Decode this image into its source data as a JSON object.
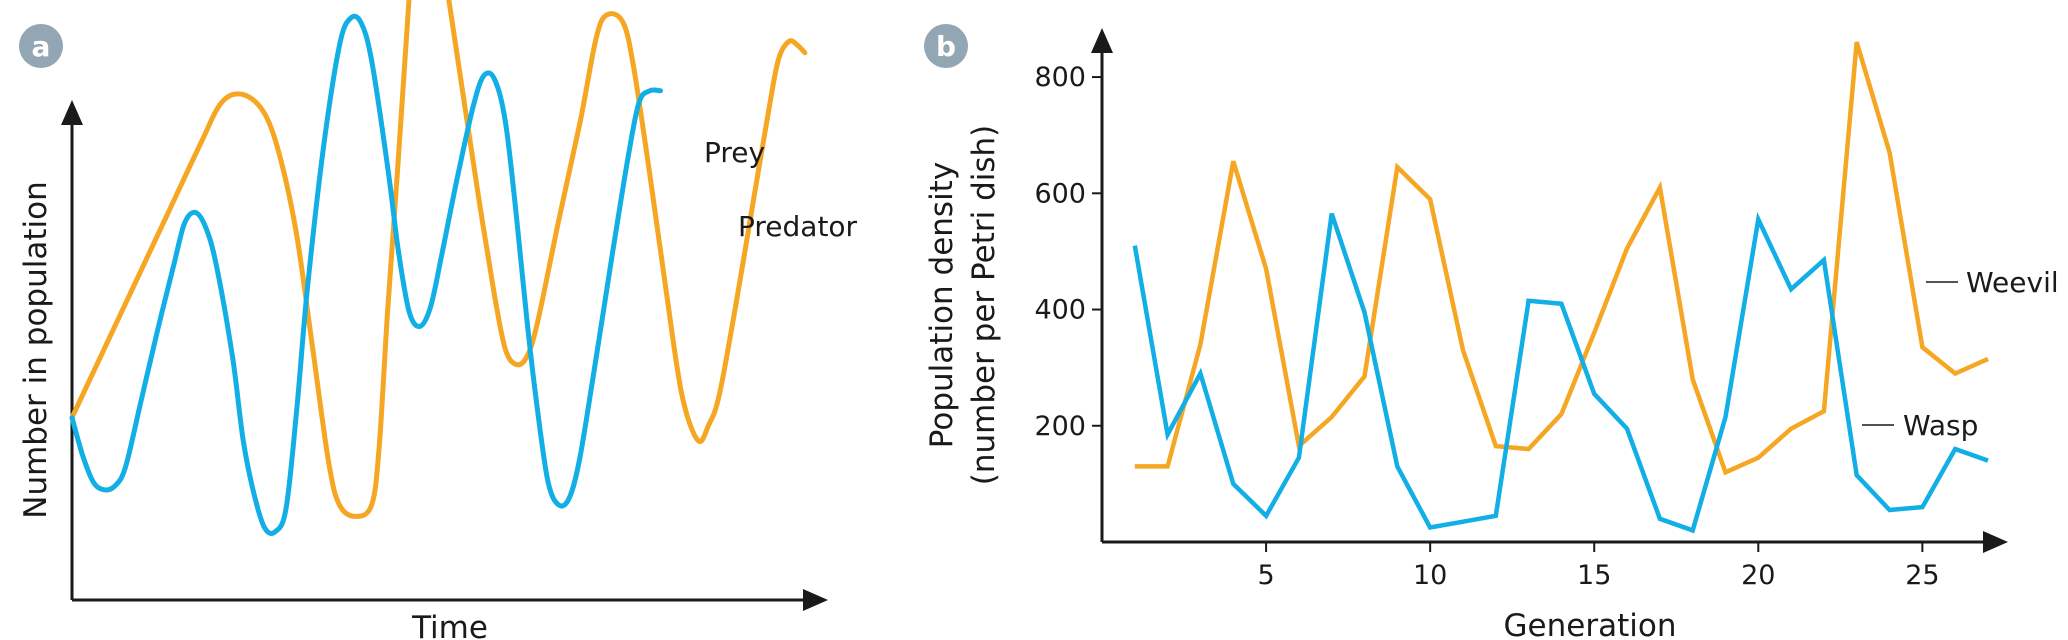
{
  "colors": {
    "prey": "#f5a623",
    "predator": "#12aee6",
    "axis": "#1a1a1a",
    "badge": "#93a6b4"
  },
  "chart_data": [
    {
      "panel": "a",
      "type": "line",
      "xlabel": "Time",
      "ylabel": "Number in population",
      "series": [
        {
          "name": "Prey",
          "color": "#f5a623",
          "points": [
            [
              0,
              0.24
            ],
            [
              3,
              0.33
            ],
            [
              6,
              0.42
            ],
            [
              9,
              0.51
            ],
            [
              12,
              0.6
            ],
            [
              14,
              0.655
            ],
            [
              16,
              0.665
            ],
            [
              18,
              0.64
            ],
            [
              19.5,
              0.58
            ],
            [
              21,
              0.48
            ],
            [
              22.5,
              0.33
            ],
            [
              24,
              0.18
            ],
            [
              25,
              0.125
            ],
            [
              26.5,
              0.11
            ],
            [
              28,
              0.125
            ],
            [
              28.7,
              0.2
            ],
            [
              29.5,
              0.38
            ],
            [
              30.5,
              0.58
            ],
            [
              31.5,
              0.79
            ],
            [
              32,
              0.86
            ],
            [
              33.2,
              0.88
            ],
            [
              34.5,
              0.86
            ],
            [
              35,
              0.81
            ],
            [
              36.5,
              0.67
            ],
            [
              38,
              0.53
            ],
            [
              39.5,
              0.4
            ],
            [
              40.5,
              0.33
            ],
            [
              41.5,
              0.31
            ],
            [
              42.5,
              0.32
            ],
            [
              43.5,
              0.365
            ],
            [
              45.5,
              0.5
            ],
            [
              47.5,
              0.63
            ],
            [
              49,
              0.74
            ],
            [
              50,
              0.77
            ],
            [
              51.5,
              0.76
            ],
            [
              52.5,
              0.7
            ],
            [
              54,
              0.56
            ],
            [
              55.5,
              0.41
            ],
            [
              57,
              0.27
            ],
            [
              58.5,
              0.21
            ],
            [
              59.5,
              0.23
            ],
            [
              60.5,
              0.27
            ],
            [
              62,
              0.385
            ],
            [
              63.5,
              0.51
            ],
            [
              65,
              0.635
            ],
            [
              66,
              0.71
            ],
            [
              67,
              0.735
            ],
            [
              67.8,
              0.73
            ],
            [
              68.5,
              0.72
            ]
          ]
        },
        {
          "name": "Predator",
          "color": "#12aee6",
          "points": [
            [
              0,
              0.24
            ],
            [
              1,
              0.19
            ],
            [
              2,
              0.155
            ],
            [
              3,
              0.145
            ],
            [
              4,
              0.15
            ],
            [
              5,
              0.175
            ],
            [
              6.5,
              0.265
            ],
            [
              8,
              0.355
            ],
            [
              9.5,
              0.44
            ],
            [
              10.5,
              0.495
            ],
            [
              11.5,
              0.51
            ],
            [
              12.5,
              0.49
            ],
            [
              13.5,
              0.44
            ],
            [
              15,
              0.32
            ],
            [
              16,
              0.21
            ],
            [
              17,
              0.14
            ],
            [
              18,
              0.095
            ],
            [
              19,
              0.09
            ],
            [
              20,
              0.12
            ],
            [
              21,
              0.25
            ],
            [
              22,
              0.41
            ],
            [
              23.5,
              0.595
            ],
            [
              25,
              0.73
            ],
            [
              26,
              0.765
            ],
            [
              27,
              0.76
            ],
            [
              28,
              0.71
            ],
            [
              29.5,
              0.57
            ],
            [
              30.5,
              0.46
            ],
            [
              31.5,
              0.38
            ],
            [
              32.5,
              0.36
            ],
            [
              33.5,
              0.385
            ],
            [
              34.5,
              0.45
            ],
            [
              36,
              0.555
            ],
            [
              37.5,
              0.65
            ],
            [
              38.5,
              0.69
            ],
            [
              39.5,
              0.685
            ],
            [
              40.5,
              0.63
            ],
            [
              41.5,
              0.51
            ],
            [
              42.5,
              0.37
            ],
            [
              43.5,
              0.25
            ],
            [
              44.5,
              0.155
            ],
            [
              45.5,
              0.125
            ],
            [
              46.5,
              0.135
            ],
            [
              47.5,
              0.19
            ],
            [
              49,
              0.32
            ],
            [
              50.5,
              0.455
            ],
            [
              52,
              0.585
            ],
            [
              53,
              0.655
            ],
            [
              54,
              0.67
            ],
            [
              55,
              0.67
            ]
          ]
        }
      ]
    },
    {
      "panel": "b",
      "type": "line",
      "xlabel": "Generation",
      "ylabel": [
        "Population density",
        "(number per Petri dish)"
      ],
      "xlim": [
        0,
        27
      ],
      "ylim": [
        0,
        850
      ],
      "xticks": [
        5,
        10,
        15,
        20,
        25
      ],
      "yticks": [
        200,
        400,
        600,
        800
      ],
      "series": [
        {
          "name": "Weevil",
          "color": "#f5a623",
          "x": [
            1,
            2,
            3,
            4,
            5,
            6,
            7,
            8,
            9,
            10,
            11,
            12,
            13,
            14,
            15,
            16,
            17,
            18,
            19,
            20,
            21,
            22,
            23,
            24,
            25,
            26,
            27
          ],
          "y": [
            130,
            130,
            340,
            655,
            470,
            165,
            215,
            285,
            645,
            590,
            330,
            165,
            160,
            220,
            360,
            505,
            610,
            280,
            120,
            145,
            195,
            225,
            860,
            670,
            335,
            290,
            315
          ]
        },
        {
          "name": "Wasp",
          "color": "#12aee6",
          "x": [
            1,
            2,
            3,
            4,
            5,
            6,
            7,
            8,
            9,
            10,
            11,
            12,
            13,
            14,
            15,
            16,
            17,
            18,
            19,
            20,
            21,
            22,
            23,
            24,
            25,
            26,
            27
          ],
          "y": [
            510,
            185,
            290,
            100,
            45,
            145,
            565,
            395,
            130,
            25,
            35,
            45,
            415,
            410,
            255,
            195,
            40,
            20,
            215,
            555,
            435,
            485,
            115,
            55,
            60,
            160,
            140
          ]
        }
      ]
    }
  ]
}
